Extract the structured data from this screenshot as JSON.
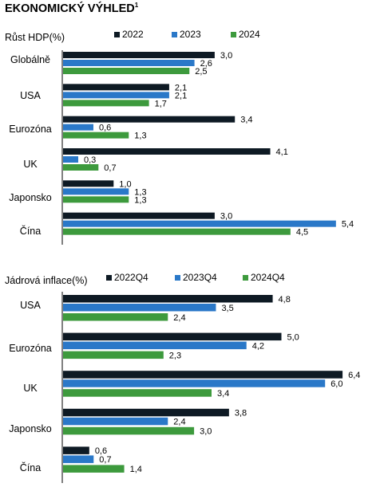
{
  "title": "EKONOMICKÝ VÝHLED",
  "title_note": "1",
  "colors": {
    "series_1": "#0e1a24",
    "series_2": "#2a78c8",
    "series_3": "#3d9a3d",
    "axis": "#000000"
  },
  "chart_data": [
    {
      "type": "bar",
      "orientation": "horizontal",
      "title": "Růst HDP(%)",
      "categories": [
        "Globálně",
        "USA",
        "Eurozóna",
        "UK",
        "Japonsko",
        "Čína"
      ],
      "series": [
        {
          "name": "2022",
          "values": [
            3.0,
            2.1,
            3.4,
            4.1,
            1.0,
            3.0
          ]
        },
        {
          "name": "2023",
          "values": [
            2.6,
            2.1,
            0.6,
            0.3,
            1.3,
            5.4
          ]
        },
        {
          "name": "2024",
          "values": [
            2.5,
            1.7,
            1.3,
            0.7,
            1.3,
            4.5
          ]
        }
      ],
      "labels": [
        [
          "3,0",
          "2,1",
          "3,4",
          "4,1",
          "1,0",
          "3,0"
        ],
        [
          "2,6",
          "2,1",
          "0,6",
          "0,3",
          "1,3",
          "5,4"
        ],
        [
          "2,5",
          "1,7",
          "1,3",
          "0,7",
          "1,3",
          "4,5"
        ]
      ],
      "xlim": [
        0,
        5.4
      ],
      "legend_position": "top",
      "grid": false
    },
    {
      "type": "bar",
      "orientation": "horizontal",
      "title": "Jádrová inflace(%)",
      "categories": [
        "USA",
        "Eurozóna",
        "UK",
        "Japonsko",
        "Čína"
      ],
      "series": [
        {
          "name": "2022Q4",
          "values": [
            4.8,
            5.0,
            6.4,
            3.8,
            0.6
          ]
        },
        {
          "name": "2023Q4",
          "values": [
            3.5,
            4.2,
            6.0,
            2.4,
            0.7
          ]
        },
        {
          "name": "2024Q4",
          "values": [
            2.4,
            2.3,
            3.4,
            3.0,
            1.4
          ]
        }
      ],
      "labels": [
        [
          "4,8",
          "5,0",
          "6,4",
          "3,8",
          "0,6"
        ],
        [
          "3,5",
          "4,2",
          "6,0",
          "2,4",
          "0,7"
        ],
        [
          "2,4",
          "2,3",
          "3,4",
          "3,0",
          "1,4"
        ]
      ],
      "xlim": [
        0,
        6.4
      ],
      "legend_position": "top",
      "grid": false
    }
  ]
}
